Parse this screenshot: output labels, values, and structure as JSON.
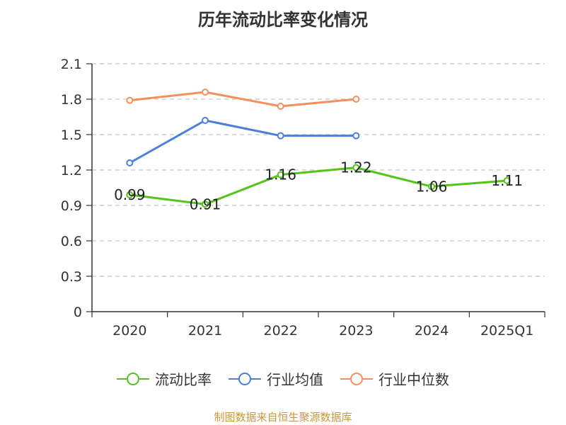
{
  "chart_data": {
    "type": "line",
    "title": "历年流动比率变化情况",
    "categories": [
      "2020",
      "2021",
      "2022",
      "2023",
      "2024",
      "2025Q1"
    ],
    "ylim": [
      0,
      2.1
    ],
    "yticks": [
      "0",
      "0.3",
      "0.6",
      "0.9",
      "1.2",
      "1.5",
      "1.8",
      "2.1"
    ],
    "grid": true,
    "legend_position": "bottom",
    "series": [
      {
        "name": "流动比率",
        "color": "#52c41a",
        "values": [
          0.99,
          0.91,
          1.16,
          1.22,
          1.06,
          1.11
        ],
        "labels": [
          "0.99",
          "0.91",
          "1.16",
          "1.22",
          "1.06",
          "1.11"
        ]
      },
      {
        "name": "行业均值",
        "color": "#4a7fdc",
        "values": [
          1.26,
          1.62,
          1.49,
          1.49,
          null,
          null
        ]
      },
      {
        "name": "行业中位数",
        "color": "#f5905d",
        "values": [
          1.79,
          1.86,
          1.74,
          1.8,
          null,
          null
        ]
      }
    ]
  },
  "source": "制图数据来自恒生聚源数据库"
}
